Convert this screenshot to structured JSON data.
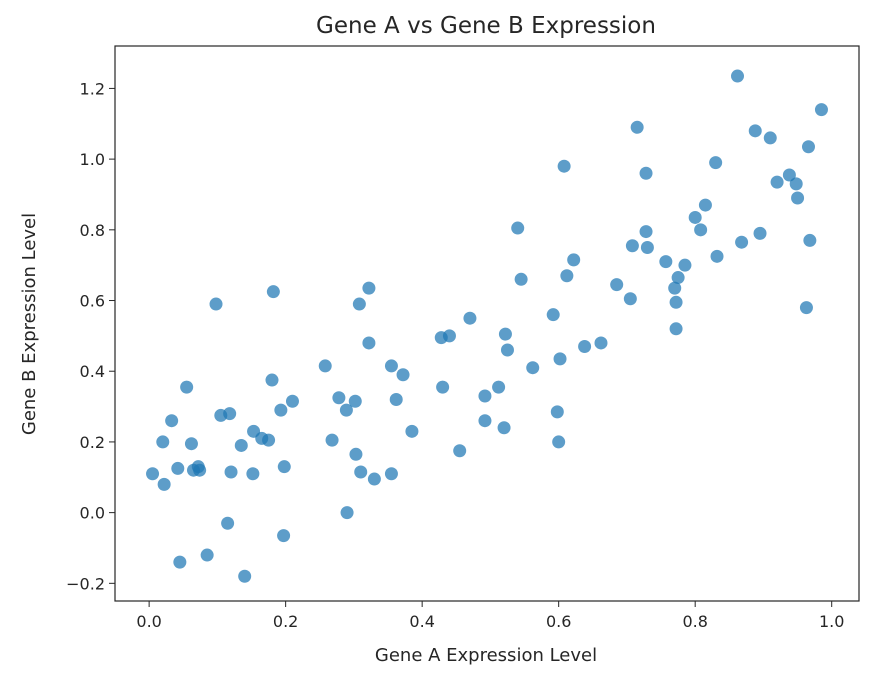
{
  "chart_data": {
    "type": "scatter",
    "title": "Gene A vs Gene B Expression",
    "xlabel": "Gene A Expression Level",
    "ylabel": "Gene B Expression Level",
    "xlim": [
      -0.05,
      1.04
    ],
    "ylim": [
      -0.25,
      1.32
    ],
    "xticks": [
      0.0,
      0.2,
      0.4,
      0.6,
      0.8,
      1.0
    ],
    "xtick_labels": [
      "0.0",
      "0.2",
      "0.4",
      "0.6",
      "0.8",
      "1.0"
    ],
    "yticks": [
      -0.2,
      0.0,
      0.2,
      0.4,
      0.6,
      0.8,
      1.0,
      1.2
    ],
    "ytick_labels": [
      "−0.2",
      "0.0",
      "0.2",
      "0.4",
      "0.6",
      "0.8",
      "1.0",
      "1.2"
    ],
    "grid": false,
    "marker_color": "#1f77b4",
    "series": [
      {
        "points": [
          [
            0.005,
            0.11
          ],
          [
            0.02,
            0.2
          ],
          [
            0.022,
            0.08
          ],
          [
            0.033,
            0.26
          ],
          [
            0.042,
            0.125
          ],
          [
            0.045,
            -0.14
          ],
          [
            0.055,
            0.355
          ],
          [
            0.062,
            0.195
          ],
          [
            0.065,
            0.12
          ],
          [
            0.072,
            0.13
          ],
          [
            0.074,
            0.12
          ],
          [
            0.085,
            -0.12
          ],
          [
            0.098,
            0.59
          ],
          [
            0.105,
            0.275
          ],
          [
            0.115,
            -0.03
          ],
          [
            0.118,
            0.28
          ],
          [
            0.12,
            0.115
          ],
          [
            0.135,
            0.19
          ],
          [
            0.14,
            -0.18
          ],
          [
            0.152,
            0.11
          ],
          [
            0.153,
            0.23
          ],
          [
            0.165,
            0.21
          ],
          [
            0.175,
            0.205
          ],
          [
            0.18,
            0.375
          ],
          [
            0.182,
            0.625
          ],
          [
            0.193,
            0.29
          ],
          [
            0.197,
            -0.065
          ],
          [
            0.198,
            0.13
          ],
          [
            0.21,
            0.315
          ],
          [
            0.258,
            0.415
          ],
          [
            0.268,
            0.205
          ],
          [
            0.278,
            0.325
          ],
          [
            0.289,
            0.29
          ],
          [
            0.29,
            0.0
          ],
          [
            0.302,
            0.315
          ],
          [
            0.303,
            0.165
          ],
          [
            0.308,
            0.59
          ],
          [
            0.31,
            0.115
          ],
          [
            0.322,
            0.48
          ],
          [
            0.322,
            0.635
          ],
          [
            0.33,
            0.095
          ],
          [
            0.355,
            0.415
          ],
          [
            0.355,
            0.11
          ],
          [
            0.362,
            0.32
          ],
          [
            0.372,
            0.39
          ],
          [
            0.385,
            0.23
          ],
          [
            0.43,
            0.355
          ],
          [
            0.428,
            0.495
          ],
          [
            0.44,
            0.5
          ],
          [
            0.455,
            0.175
          ],
          [
            0.47,
            0.55
          ],
          [
            0.492,
            0.33
          ],
          [
            0.492,
            0.26
          ],
          [
            0.512,
            0.355
          ],
          [
            0.52,
            0.24
          ],
          [
            0.522,
            0.505
          ],
          [
            0.525,
            0.46
          ],
          [
            0.54,
            0.805
          ],
          [
            0.545,
            0.66
          ],
          [
            0.562,
            0.41
          ],
          [
            0.592,
            0.56
          ],
          [
            0.598,
            0.285
          ],
          [
            0.6,
            0.2
          ],
          [
            0.602,
            0.435
          ],
          [
            0.608,
            0.98
          ],
          [
            0.612,
            0.67
          ],
          [
            0.622,
            0.715
          ],
          [
            0.638,
            0.47
          ],
          [
            0.662,
            0.48
          ],
          [
            0.685,
            0.645
          ],
          [
            0.705,
            0.605
          ],
          [
            0.708,
            0.755
          ],
          [
            0.715,
            1.09
          ],
          [
            0.728,
            0.96
          ],
          [
            0.728,
            0.795
          ],
          [
            0.73,
            0.75
          ],
          [
            0.757,
            0.71
          ],
          [
            0.77,
            0.635
          ],
          [
            0.772,
            0.595
          ],
          [
            0.772,
            0.52
          ],
          [
            0.775,
            0.665
          ],
          [
            0.785,
            0.7
          ],
          [
            0.8,
            0.835
          ],
          [
            0.808,
            0.8
          ],
          [
            0.815,
            0.87
          ],
          [
            0.83,
            0.99
          ],
          [
            0.832,
            0.725
          ],
          [
            0.862,
            1.235
          ],
          [
            0.868,
            0.765
          ],
          [
            0.888,
            1.08
          ],
          [
            0.895,
            0.79
          ],
          [
            0.91,
            1.06
          ],
          [
            0.92,
            0.935
          ],
          [
            0.938,
            0.955
          ],
          [
            0.948,
            0.93
          ],
          [
            0.95,
            0.89
          ],
          [
            0.963,
            0.58
          ],
          [
            0.966,
            1.035
          ],
          [
            0.968,
            0.77
          ],
          [
            0.985,
            1.14
          ]
        ]
      }
    ]
  }
}
